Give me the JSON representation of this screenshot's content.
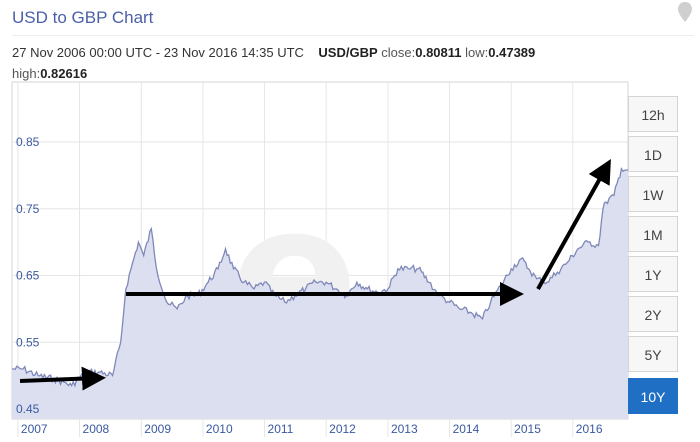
{
  "header": {
    "title": "USD to GBP Chart",
    "date_range": "27 Nov 2006 00:00 UTC - 23 Nov 2016 14:35 UTC",
    "pair": "USD/GBP",
    "close_label": "close:",
    "close_value": "0.80811",
    "low_label": "low:",
    "low_value": "0.47389",
    "high_label": "high:",
    "high_value": "0.82616"
  },
  "ranges": {
    "items": [
      "12h",
      "1D",
      "1W",
      "1M",
      "1Y",
      "2Y",
      "5Y",
      "10Y"
    ],
    "active": "10Y"
  },
  "colors": {
    "line": "#7f88b8",
    "area": "#dcdff0",
    "annotation": "#000000",
    "active_range": "#1f6fc4"
  },
  "chart_data": {
    "type": "area",
    "title": "USD to GBP Chart",
    "x_tick_labels": [
      "2007",
      "2008",
      "2009",
      "2010",
      "2011",
      "2012",
      "2013",
      "2014",
      "2015",
      "2016"
    ],
    "y_tick_labels": [
      "0.45",
      "0.55",
      "0.65",
      "0.75",
      "0.85"
    ],
    "xlim": [
      "2006-11-27",
      "2016-11-23"
    ],
    "ylim": [
      0.45,
      0.85
    ],
    "grid": true,
    "series": [
      {
        "x": [
          "2006-11-27",
          "2007-02-01",
          "2007-05-01",
          "2007-08-01",
          "2007-10-01",
          "2007-11-15",
          "2008-02-01",
          "2008-05-01",
          "2008-07-15",
          "2008-09-01",
          "2008-10-01",
          "2008-11-01",
          "2008-12-15",
          "2009-01-15",
          "2009-03-01",
          "2009-04-01",
          "2009-06-01",
          "2009-08-01",
          "2009-10-01",
          "2009-12-01",
          "2010-02-01",
          "2010-04-01",
          "2010-05-15",
          "2010-07-01",
          "2010-09-01",
          "2010-11-01",
          "2011-01-01",
          "2011-03-01",
          "2011-05-01",
          "2011-07-01",
          "2011-09-01",
          "2011-11-01",
          "2012-01-01",
          "2012-03-01",
          "2012-05-01",
          "2012-07-01",
          "2012-09-01",
          "2012-11-01",
          "2013-01-01",
          "2013-03-01",
          "2013-05-01",
          "2013-07-01",
          "2013-09-01",
          "2013-11-01",
          "2014-01-01",
          "2014-03-01",
          "2014-05-01",
          "2014-07-15",
          "2014-09-01",
          "2014-11-01",
          "2015-01-01",
          "2015-03-01",
          "2015-04-15",
          "2015-06-01",
          "2015-08-01",
          "2015-10-01",
          "2015-12-01",
          "2016-02-01",
          "2016-04-01",
          "2016-06-01",
          "2016-06-28",
          "2016-07-15",
          "2016-09-01",
          "2016-10-15",
          "2016-11-23"
        ],
        "y": [
          0.51,
          0.51,
          0.5,
          0.495,
          0.49,
          0.485,
          0.505,
          0.505,
          0.5,
          0.55,
          0.63,
          0.66,
          0.7,
          0.68,
          0.72,
          0.66,
          0.61,
          0.6,
          0.62,
          0.62,
          0.64,
          0.66,
          0.69,
          0.66,
          0.64,
          0.63,
          0.64,
          0.62,
          0.61,
          0.62,
          0.63,
          0.64,
          0.64,
          0.63,
          0.62,
          0.64,
          0.63,
          0.625,
          0.63,
          0.66,
          0.66,
          0.66,
          0.64,
          0.62,
          0.61,
          0.6,
          0.595,
          0.585,
          0.61,
          0.635,
          0.66,
          0.675,
          0.66,
          0.645,
          0.64,
          0.655,
          0.67,
          0.69,
          0.7,
          0.695,
          0.75,
          0.76,
          0.77,
          0.81,
          0.808
        ]
      }
    ],
    "annotations": "Four hand-drawn black trend arrows overlay the chart"
  }
}
